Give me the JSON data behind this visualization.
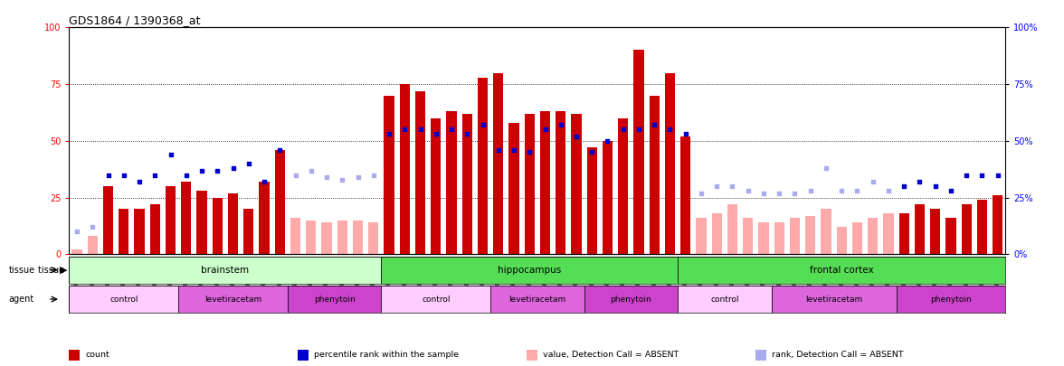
{
  "title": "GDS1864 / 1390368_at",
  "samples": [
    "GSM53440",
    "GSM53441",
    "GSM53442",
    "GSM53443",
    "GSM53444",
    "GSM53445",
    "GSM53446",
    "GSM53426",
    "GSM53427",
    "GSM53428",
    "GSM53429",
    "GSM53430",
    "GSM53431",
    "GSM53432",
    "GSM53412",
    "GSM53413",
    "GSM53414",
    "GSM53415",
    "GSM53416",
    "GSM53417",
    "GSM53447",
    "GSM53448",
    "GSM53449",
    "GSM53450",
    "GSM53451",
    "GSM53452",
    "GSM53453",
    "GSM53433",
    "GSM53434",
    "GSM53435",
    "GSM53436",
    "GSM53437",
    "GSM53438",
    "GSM53419",
    "GSM53420",
    "GSM53421",
    "GSM53422",
    "GSM53423",
    "GSM53424",
    "GSM53425",
    "GSM53468",
    "GSM53469",
    "GSM53470",
    "GSM53471",
    "GSM53472",
    "GSM53473",
    "GSM53454",
    "GSM53455",
    "GSM53456",
    "GSM53457",
    "GSM53458",
    "GSM53459",
    "GSM53460",
    "GSM53461",
    "GSM53462",
    "GSM53463",
    "GSM53464",
    "GSM53465",
    "GSM53466",
    "GSM53467"
  ],
  "count_values": [
    2,
    8,
    30,
    20,
    20,
    22,
    30,
    32,
    28,
    25,
    27,
    20,
    32,
    46,
    16,
    15,
    14,
    15,
    15,
    14,
    70,
    75,
    72,
    60,
    63,
    62,
    78,
    80,
    58,
    62,
    63,
    63,
    62,
    47,
    50,
    60,
    90,
    70,
    80,
    52,
    16,
    18,
    22,
    16,
    14,
    14,
    16,
    17,
    20,
    12,
    14,
    16,
    18,
    18,
    22,
    20,
    16,
    22,
    24,
    26
  ],
  "count_absent": [
    true,
    true,
    false,
    false,
    false,
    false,
    false,
    false,
    false,
    false,
    false,
    false,
    false,
    false,
    true,
    true,
    true,
    true,
    true,
    true,
    false,
    false,
    false,
    false,
    false,
    false,
    false,
    false,
    false,
    false,
    false,
    false,
    false,
    false,
    false,
    false,
    false,
    false,
    false,
    false,
    true,
    true,
    true,
    true,
    true,
    true,
    true,
    true,
    true,
    true,
    true,
    true,
    true,
    false,
    false,
    false,
    false,
    false,
    false,
    false
  ],
  "rank_values": [
    10,
    12,
    35,
    35,
    32,
    35,
    44,
    35,
    37,
    37,
    38,
    40,
    32,
    46,
    35,
    37,
    34,
    33,
    34,
    35,
    53,
    55,
    55,
    53,
    55,
    53,
    57,
    46,
    46,
    45,
    55,
    57,
    52,
    45,
    50,
    55,
    55,
    57,
    55,
    53,
    27,
    30,
    30,
    28,
    27,
    27,
    27,
    28,
    38,
    28,
    28,
    32,
    28,
    30,
    32,
    30,
    28,
    35,
    35,
    35
  ],
  "rank_absent": [
    true,
    true,
    false,
    false,
    false,
    false,
    false,
    false,
    false,
    false,
    false,
    false,
    false,
    false,
    true,
    true,
    true,
    true,
    true,
    true,
    false,
    false,
    false,
    false,
    false,
    false,
    false,
    false,
    false,
    false,
    false,
    false,
    false,
    false,
    false,
    false,
    false,
    false,
    false,
    false,
    true,
    true,
    true,
    true,
    true,
    true,
    true,
    true,
    true,
    true,
    true,
    true,
    true,
    false,
    false,
    false,
    false,
    false,
    false,
    false
  ],
  "tissue_groups": [
    {
      "label": "brainstem",
      "start": 0,
      "end": 19,
      "color": "#ccffcc"
    },
    {
      "label": "hippocampus",
      "start": 20,
      "end": 38,
      "color": "#55dd55"
    },
    {
      "label": "frontal cortex",
      "start": 39,
      "end": 59,
      "color": "#55dd55"
    }
  ],
  "agent_groups": [
    {
      "label": "control",
      "start": 0,
      "end": 6,
      "color": "#ffccff"
    },
    {
      "label": "levetiracetam",
      "start": 7,
      "end": 13,
      "color": "#dd66dd"
    },
    {
      "label": "phenytoin",
      "start": 14,
      "end": 19,
      "color": "#cc44cc"
    },
    {
      "label": "control",
      "start": 20,
      "end": 26,
      "color": "#ffccff"
    },
    {
      "label": "levetiracetam",
      "start": 27,
      "end": 32,
      "color": "#dd66dd"
    },
    {
      "label": "phenytoin",
      "start": 33,
      "end": 38,
      "color": "#cc44cc"
    },
    {
      "label": "control",
      "start": 39,
      "end": 44,
      "color": "#ffccff"
    },
    {
      "label": "levetiracetam",
      "start": 45,
      "end": 52,
      "color": "#dd66dd"
    },
    {
      "label": "phenytoin",
      "start": 53,
      "end": 59,
      "color": "#cc44cc"
    }
  ],
  "bar_color_present": "#cc0000",
  "bar_color_absent": "#ffaaaa",
  "dot_color_present": "#0000cc",
  "dot_color_absent": "#aaaaee",
  "bg_color": "#ffffff",
  "tissue_label_color": "#000000",
  "agent_label_color": "#000000"
}
